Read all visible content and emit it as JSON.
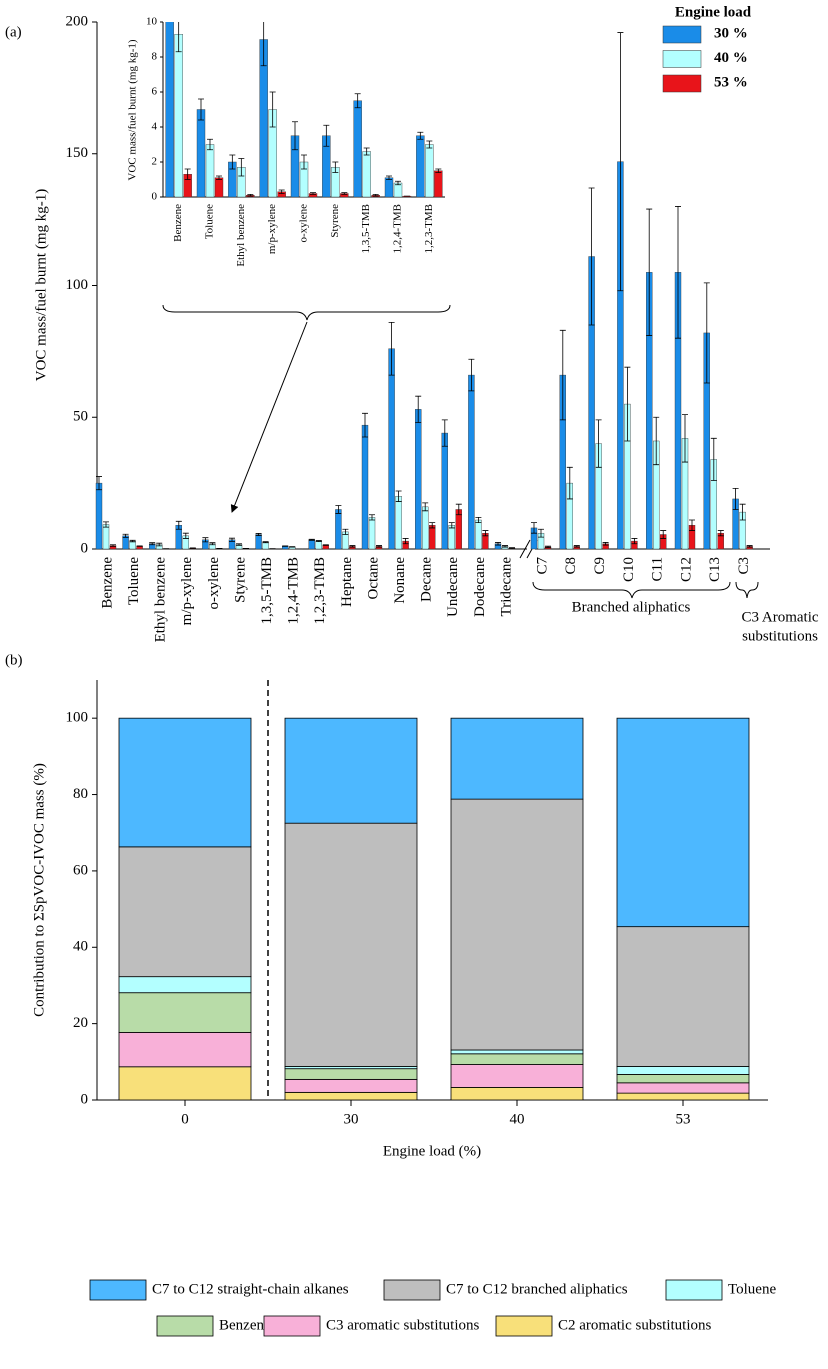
{
  "chart_data": [
    {
      "type": "bar",
      "panel": "(a)",
      "ylabel": "VOC mass/fuel burnt (mg kg-1)",
      "categories": [
        "Benzene",
        "Toluene",
        "Ethyl benzene",
        "m/p-xylene",
        "o-xylene",
        "Styrene",
        "1,3,5-TMB",
        "1,2,4-TMB",
        "1,2,3-TMB",
        "Heptane",
        "Octane",
        "Nonane",
        "Decane",
        "Undecane",
        "Dodecane",
        "Tridecane",
        "C7",
        "C8",
        "C9",
        "C10",
        "C11",
        "C12",
        "C13",
        "C3"
      ],
      "series": [
        {
          "name": "30 %",
          "color": "#1a8ce8",
          "values": [
            25,
            5,
            2,
            9,
            3.5,
            3.5,
            5.5,
            1.1,
            3.5,
            15,
            47,
            76,
            53,
            44,
            66,
            2,
            8,
            66,
            111,
            147,
            105,
            105,
            82,
            19
          ],
          "errors": [
            2.5,
            0.6,
            0.4,
            1.5,
            0.8,
            0.6,
            0.4,
            0.1,
            0.2,
            1.5,
            4.5,
            10,
            5,
            5,
            6,
            0.5,
            2,
            17,
            26,
            49,
            24,
            25,
            19,
            4
          ]
        },
        {
          "name": "40 %",
          "color": "#b3ffff",
          "values": [
            9.3,
            3,
            1.7,
            5,
            2,
            1.7,
            2.6,
            0.8,
            3,
            6.5,
            12,
            20,
            16,
            9,
            11,
            1,
            6,
            25,
            40,
            55,
            41,
            42,
            34,
            14
          ],
          "errors": [
            1,
            0.3,
            0.5,
            1,
            0.4,
            0.3,
            0.2,
            0.1,
            0.2,
            1,
            1,
            2,
            1.5,
            1,
            1,
            0.3,
            1.5,
            6,
            9,
            14,
            9,
            9,
            8,
            3
          ]
        },
        {
          "name": "53 %",
          "color": "#e8141a",
          "values": [
            1.3,
            1.1,
            0.1,
            0.3,
            0.2,
            0.2,
            0.1,
            0.05,
            1.5,
            1,
            1,
            3,
            9,
            15,
            6,
            0.3,
            0.8,
            1,
            2,
            3,
            5.5,
            9,
            6,
            1
          ],
          "errors": [
            0.3,
            0.1,
            0.05,
            0.1,
            0.05,
            0.05,
            0.05,
            0,
            0.1,
            0.3,
            0.3,
            1,
            1,
            2,
            1,
            0.2,
            0.3,
            0.3,
            0.5,
            1,
            1.5,
            2,
            1,
            0.3
          ]
        }
      ],
      "ylim": [
        0,
        200
      ],
      "yticks": [
        0,
        50,
        100,
        150,
        200
      ],
      "legend_title": "Engine load",
      "legend": "upper right",
      "annotations": [
        "Branched aliphatics",
        "C3 Aromatic",
        "substitutions"
      ],
      "inset": {
        "ylabel": "VOC mass/fuel burnt (mg kg-1)",
        "categories": [
          "Benzene",
          "Toluene",
          "Ethyl benzene",
          "m/p-xylene",
          "o-xylene",
          "Styrene",
          "1,3,5-TMB",
          "1,2,4-TMB",
          "1,2,3-TMB"
        ],
        "ylim": [
          0,
          10
        ],
        "yticks": [
          0,
          2,
          4,
          6,
          8,
          10
        ]
      }
    },
    {
      "type": "stacked_bar",
      "panel": "(b)",
      "ylabel": "Contribution to ΣSpVOC-IVOC mass (%)",
      "xlabel": "Engine load (%)",
      "categories": [
        "0",
        "30",
        "40",
        "53"
      ],
      "series": [
        {
          "name": "C7 to C12 straight-chain alkanes",
          "color": "#4db8ff",
          "values": [
            33.7,
            27.5,
            21.2,
            54.6
          ]
        },
        {
          "name": "C7 to C12 branched aliphatics",
          "color": "#bebebe",
          "values": [
            34,
            63.7,
            65.7,
            36.6
          ]
        },
        {
          "name": "Toluene",
          "color": "#b3ffff",
          "values": [
            4.2,
            0.6,
            1.0,
            2.1
          ]
        },
        {
          "name": "Benzene",
          "color": "#b8dca8",
          "values": [
            10.4,
            2.8,
            2.8,
            2.2
          ]
        },
        {
          "name": "C3 aromatic substitutions",
          "color": "#f8b0d8",
          "values": [
            9,
            3.4,
            6,
            2.7
          ]
        },
        {
          "name": "C2 aromatic substitutions",
          "color": "#f8e07a",
          "values": [
            8.7,
            2,
            3.3,
            1.8
          ]
        }
      ],
      "ylim": [
        0,
        110
      ],
      "yticks": [
        0,
        20,
        40,
        60,
        80,
        100
      ],
      "legend": "bottom"
    }
  ]
}
